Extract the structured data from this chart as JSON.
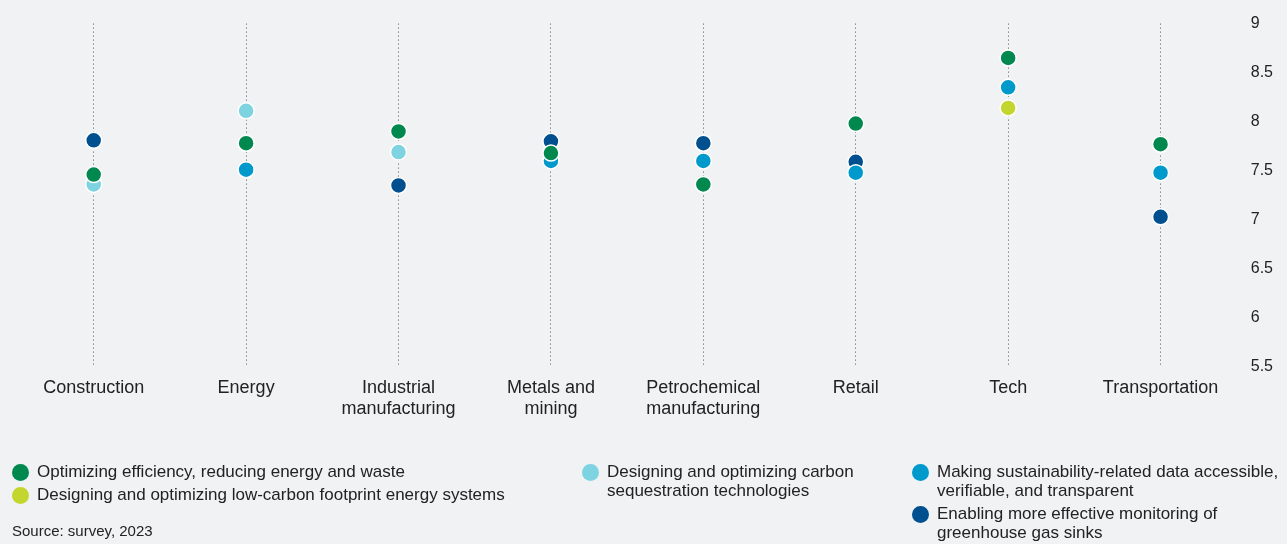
{
  "chart_data": {
    "type": "scatter",
    "categories": [
      "Construction",
      "Energy",
      "Industrial manufacturing",
      "Metals and mining",
      "Petrochemical manufacturing",
      "Retail",
      "Tech",
      "Transportation"
    ],
    "series": [
      {
        "name": "Optimizing efficiency, reducing energy and waste",
        "color": "#00884f",
        "values": [
          7.46,
          7.78,
          7.9,
          7.68,
          7.36,
          7.98,
          8.65,
          7.77
        ]
      },
      {
        "name": "Designing and optimizing low-carbon footprint energy systems",
        "color": "#c3d62e",
        "values": [
          null,
          null,
          null,
          null,
          null,
          null,
          8.14,
          null
        ]
      },
      {
        "name": "Designing and optimizing carbon sequestration technologies",
        "color": "#7dd3e0",
        "values": [
          7.36,
          8.11,
          7.69,
          null,
          null,
          null,
          null,
          null
        ]
      },
      {
        "name": "Making sustainability-related data accessible, verifiable, and transparent",
        "color": "#0099cc",
        "values": [
          null,
          7.51,
          null,
          7.6,
          7.6,
          7.48,
          8.35,
          7.48
        ]
      },
      {
        "name": "Enabling more effective monitoring of greenhouse gas sinks",
        "color": "#00508f",
        "values": [
          7.81,
          null,
          7.35,
          7.8,
          7.78,
          7.59,
          null,
          7.03
        ]
      }
    ],
    "ylim": [
      5.5,
      9
    ],
    "yticks": [
      5.5,
      6,
      6.5,
      7,
      7.5,
      8,
      8.5,
      9
    ],
    "grid": "x",
    "legend": "bottom",
    "marker": "circle",
    "annotations": [
      "Source: survey, 2023"
    ]
  }
}
